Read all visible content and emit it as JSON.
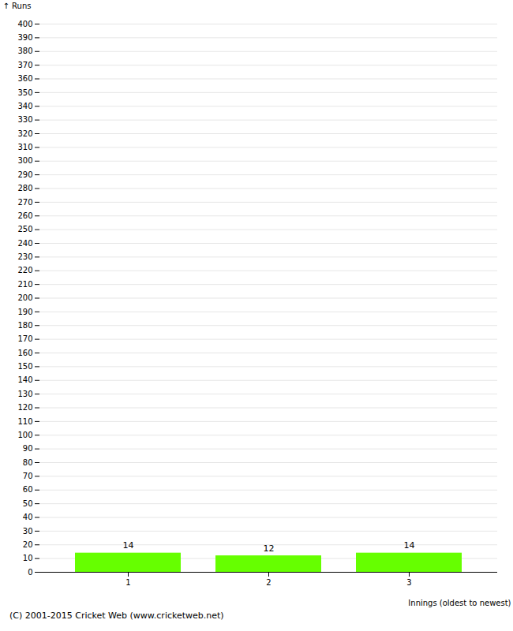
{
  "chart_data": {
    "type": "bar",
    "categories": [
      1,
      2,
      3
    ],
    "values": [
      14,
      12,
      14
    ],
    "color": "#66ff00",
    "xlabel": "Innings (oldest to newest)",
    "ylabel": "Runs",
    "ylim": [
      0,
      400
    ],
    "yticks": [
      0,
      10,
      20,
      30,
      40,
      50,
      60,
      70,
      80,
      90,
      100,
      110,
      120,
      130,
      140,
      150,
      160,
      170,
      180,
      190,
      200,
      210,
      220,
      230,
      240,
      250,
      260,
      270,
      280,
      290,
      300,
      310,
      320,
      330,
      340,
      350,
      360,
      370,
      380,
      390,
      400
    ],
    "grid": true,
    "data_labels": true,
    "annotations": [
      "(C) 2001-2015 Cricket Web (www.cricketweb.net)"
    ]
  }
}
